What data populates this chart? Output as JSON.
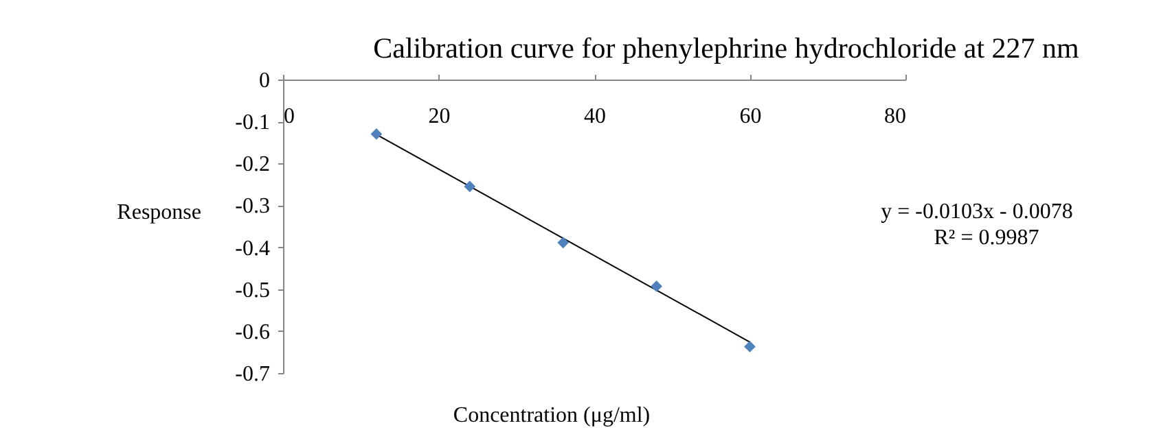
{
  "chart_data": {
    "type": "scatter",
    "title": "Calibration curve for phenylephrine hydrochloride  at 227 nm",
    "xlabel": "Concentration (μg/ml)",
    "ylabel": "Response",
    "annotations": [
      "y = -0.0103x - 0.0078",
      "R² = 0.9987"
    ],
    "xlim": [
      0,
      80
    ],
    "xticks": [
      0,
      20,
      40,
      60,
      80
    ],
    "ylim": [
      -0.7,
      0
    ],
    "yticks": [
      -0.7,
      -0.6,
      -0.5,
      -0.4,
      -0.3,
      -0.2,
      -0.1,
      0
    ],
    "grid": false,
    "marker": "diamond",
    "series": [
      {
        "color": "#4f81bd",
        "x": [
          12,
          24,
          36,
          48,
          60
        ],
        "values": [
          -0.13,
          -0.255,
          -0.389,
          -0.493,
          -0.637
        ]
      },
      {
        "type": "line",
        "color": "#000000",
        "marker": "none",
        "x": [
          12,
          60
        ],
        "values": [
          -0.131,
          -0.626
        ]
      }
    ]
  }
}
